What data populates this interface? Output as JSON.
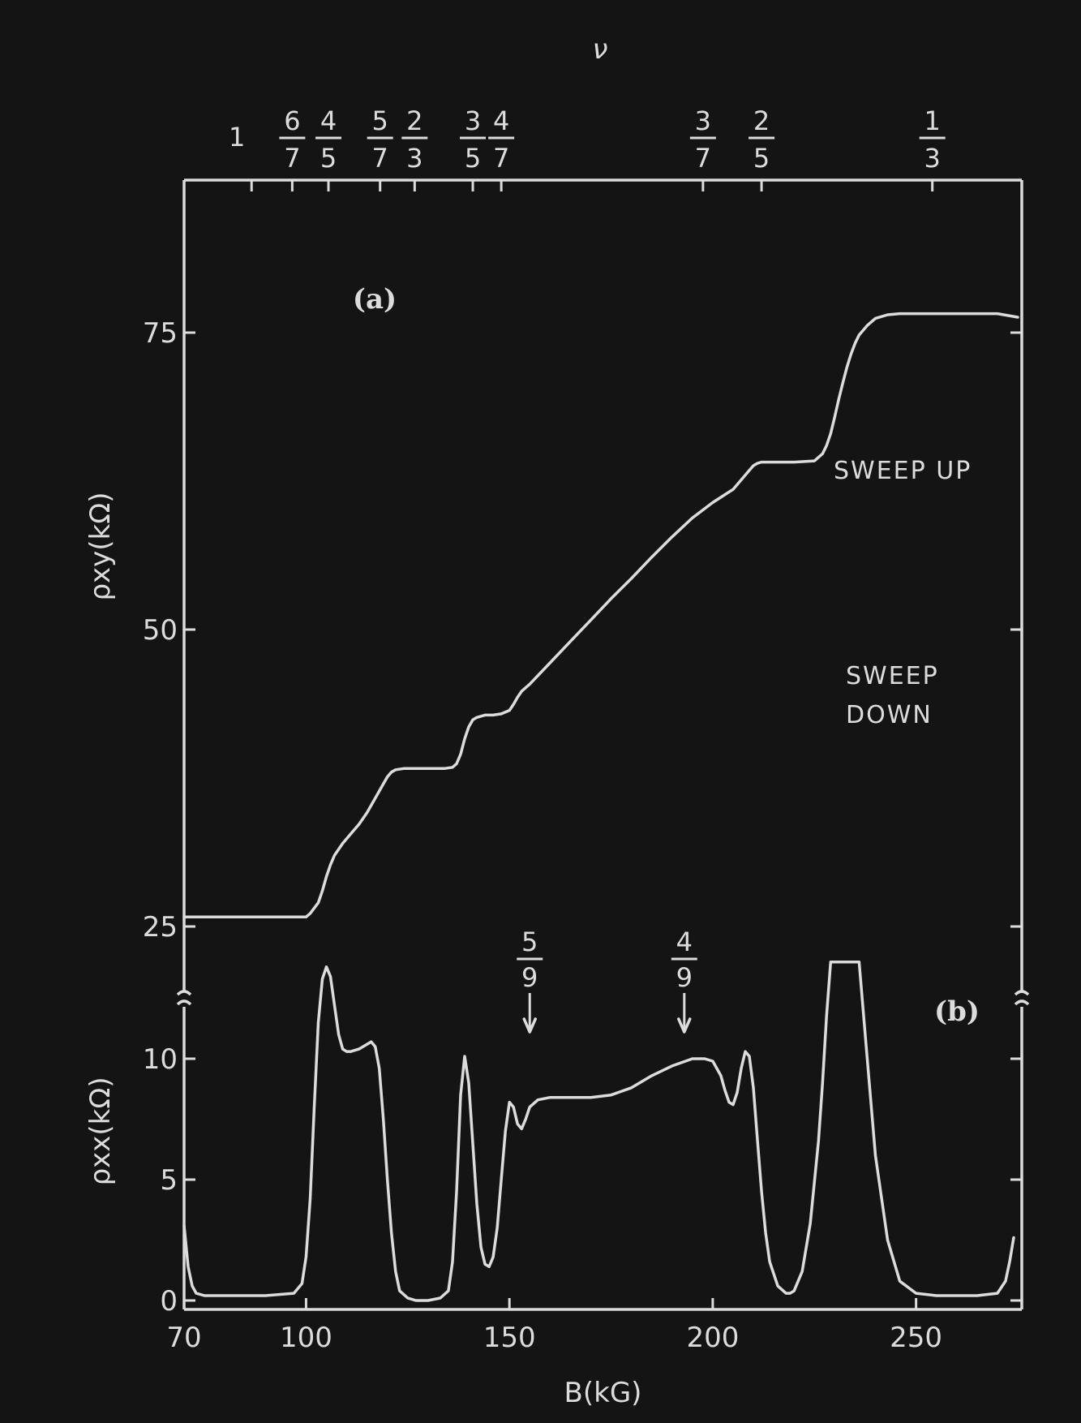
{
  "chart_data": [
    {
      "type": "line",
      "panel_label": "(a)",
      "ylabel": "ρxy(kΩ)",
      "yticks": [
        25,
        50,
        75
      ],
      "ylim": [
        23,
        88
      ],
      "xlim": [
        70,
        276
      ],
      "annotation": "SWEEP UP",
      "series": [
        {
          "x": [
            70,
            75,
            80,
            90,
            98,
            100,
            101,
            103,
            104,
            105,
            106,
            107,
            109,
            111,
            113,
            115,
            117,
            119,
            120,
            121,
            122,
            124,
            126,
            128,
            130,
            132,
            134,
            136,
            137,
            138,
            139,
            140,
            141,
            142,
            144,
            146,
            148,
            150,
            151,
            152,
            153,
            155,
            160,
            165,
            170,
            175,
            180,
            185,
            190,
            195,
            200,
            205,
            207,
            209,
            210,
            211,
            212,
            213,
            215,
            217,
            220,
            225,
            227,
            228,
            229,
            230,
            231,
            232,
            233,
            234,
            235,
            236,
            238,
            240,
            243,
            246,
            250,
            260,
            270,
            275
          ],
          "y": [
            25.8,
            25.8,
            25.8,
            25.8,
            25.8,
            25.8,
            26.1,
            27.0,
            28.0,
            29.2,
            30.2,
            31.0,
            32.0,
            32.8,
            33.6,
            34.6,
            35.8,
            37.0,
            37.6,
            38.0,
            38.2,
            38.3,
            38.3,
            38.3,
            38.3,
            38.3,
            38.3,
            38.4,
            38.7,
            39.5,
            40.8,
            41.8,
            42.4,
            42.6,
            42.8,
            42.8,
            42.9,
            43.2,
            43.7,
            44.3,
            44.8,
            45.4,
            47.2,
            49.0,
            50.8,
            52.6,
            54.3,
            56.1,
            57.8,
            59.4,
            60.7,
            61.8,
            62.6,
            63.4,
            63.8,
            64.0,
            64.1,
            64.1,
            64.1,
            64.1,
            64.1,
            64.2,
            64.8,
            65.5,
            66.5,
            67.9,
            69.4,
            70.8,
            72.1,
            73.2,
            74.1,
            74.8,
            75.6,
            76.2,
            76.5,
            76.6,
            76.6,
            76.6,
            76.6,
            76.3
          ]
        }
      ]
    },
    {
      "type": "line",
      "panel_label": "(b)",
      "ylabel": "ρxx(kΩ)",
      "yticks": [
        0,
        5,
        10
      ],
      "ylim": [
        -0.3,
        14
      ],
      "xlim": [
        70,
        276
      ],
      "annotation": [
        "SWEEP",
        "DOWN"
      ],
      "series": [
        {
          "x": [
            70,
            71,
            72,
            73,
            75,
            80,
            90,
            97,
            99,
            100,
            101,
            102,
            103,
            104,
            105,
            106,
            107,
            108,
            109,
            110,
            111,
            113,
            115,
            116,
            117,
            118,
            119,
            120,
            121,
            122,
            123,
            125,
            127,
            130,
            133,
            135,
            136,
            137,
            138,
            139,
            140,
            141,
            142,
            143,
            144,
            145,
            146,
            147,
            148,
            149,
            150,
            151,
            152,
            153,
            154,
            155,
            157,
            160,
            165,
            170,
            175,
            180,
            185,
            190,
            195,
            198,
            200,
            202,
            203,
            204,
            205,
            206,
            207,
            208,
            209,
            210,
            211,
            212,
            213,
            214,
            216,
            218,
            219,
            220,
            222,
            224,
            226,
            227,
            228,
            229,
            230,
            231,
            232,
            233,
            234,
            235,
            236,
            238,
            240,
            243,
            246,
            250,
            255,
            260,
            265,
            270,
            272,
            273,
            274
          ],
          "y": [
            3.1,
            1.4,
            0.6,
            0.3,
            0.2,
            0.2,
            0.2,
            0.3,
            0.7,
            1.8,
            4.2,
            8.0,
            11.5,
            13.3,
            13.8,
            13.4,
            12.2,
            11.0,
            10.4,
            10.3,
            10.3,
            10.4,
            10.6,
            10.7,
            10.5,
            9.6,
            7.5,
            5.0,
            2.8,
            1.2,
            0.4,
            0.1,
            0.0,
            0.0,
            0.1,
            0.4,
            1.6,
            4.5,
            8.5,
            10.1,
            9.0,
            6.5,
            4.0,
            2.2,
            1.5,
            1.4,
            1.8,
            3.0,
            5.0,
            7.0,
            8.2,
            8.0,
            7.3,
            7.1,
            7.5,
            8.0,
            8.3,
            8.4,
            8.4,
            8.4,
            8.5,
            8.8,
            9.3,
            9.7,
            10.0,
            10.0,
            9.9,
            9.3,
            8.7,
            8.2,
            8.1,
            8.6,
            9.6,
            10.3,
            10.1,
            8.8,
            6.6,
            4.5,
            2.8,
            1.6,
            0.6,
            0.3,
            0.3,
            0.4,
            1.2,
            3.2,
            6.6,
            9.0,
            11.8,
            14.0,
            14.0,
            14.0,
            14.0,
            14.0,
            14.0,
            14.0,
            14.0,
            10.0,
            6.0,
            2.5,
            0.8,
            0.3,
            0.2,
            0.2,
            0.2,
            0.3,
            0.8,
            1.6,
            2.6
          ]
        }
      ]
    }
  ],
  "xaxis": {
    "label": "B(kG)",
    "ticks": [
      70,
      100,
      150,
      200,
      250
    ]
  },
  "top_axis": {
    "title": "ν",
    "integer": {
      "label": "1",
      "x": 85
    },
    "fractions": [
      {
        "num": "6",
        "den": "7",
        "x": 96.6
      },
      {
        "num": "4",
        "den": "5",
        "x": 105.5
      },
      {
        "num": "5",
        "den": "7",
        "x": 118.2
      },
      {
        "num": "2",
        "den": "3",
        "x": 126.7
      },
      {
        "num": "3",
        "den": "5",
        "x": 141
      },
      {
        "num": "4",
        "den": "7",
        "x": 148
      },
      {
        "num": "3",
        "den": "7",
        "x": 197.6
      },
      {
        "num": "2",
        "den": "5",
        "x": 212
      },
      {
        "num": "1",
        "den": "3",
        "x": 254
      }
    ]
  },
  "arrows": [
    {
      "num": "5",
      "den": "9",
      "x": 155
    },
    {
      "num": "4",
      "den": "9",
      "x": 193
    }
  ]
}
